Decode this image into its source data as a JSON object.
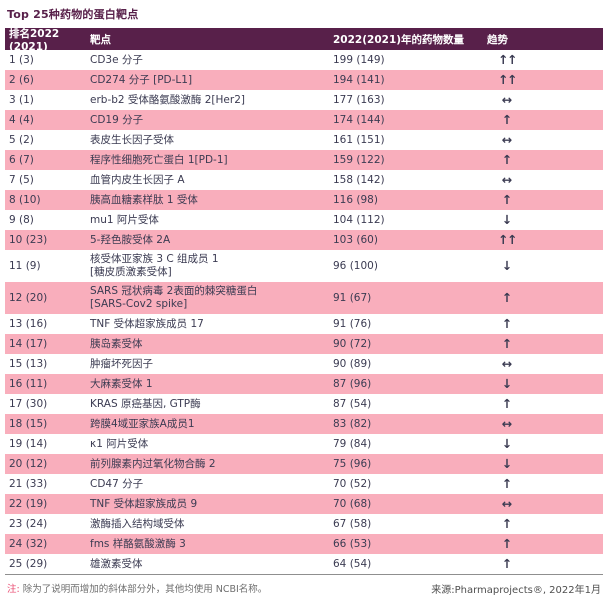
{
  "title": "Top 25种药物的蛋白靶点",
  "columns": {
    "rank": "排名2022 (2021)",
    "target": "靶点",
    "count": "2022(2021)年的药物数量",
    "trend": "趋势"
  },
  "trend_glyphs": {
    "up": "↑",
    "up-up": "↑↑",
    "down": "↓",
    "flat": "↔"
  },
  "rows": [
    {
      "rank": "1 (3)",
      "target": [
        "CD3e 分子"
      ],
      "count": "199 (149)",
      "trend": "up-up"
    },
    {
      "rank": "2 (6)",
      "target": [
        "CD274 分子 [PD-L1]"
      ],
      "count": "194 (141)",
      "trend": "up-up"
    },
    {
      "rank": "3 (1)",
      "target": [
        "erb-b2 受体酪氨酸激酶 2[Her2]"
      ],
      "count": "177 (163)",
      "trend": "flat"
    },
    {
      "rank": "4 (4)",
      "target": [
        "CD19 分子"
      ],
      "count": "174 (144)",
      "trend": "up"
    },
    {
      "rank": "5 (2)",
      "target": [
        "表皮生长因子受体"
      ],
      "count": "161 (151)",
      "trend": "flat"
    },
    {
      "rank": "6 (7)",
      "target": [
        "程序性细胞死亡蛋白 1[PD-1]"
      ],
      "count": "159 (122)",
      "trend": "up"
    },
    {
      "rank": "7 (5)",
      "target": [
        "血管内皮生长因子 A"
      ],
      "count": "158 (142)",
      "trend": "flat"
    },
    {
      "rank": "8 (10)",
      "target": [
        "胰高血糖素样肽 1 受体"
      ],
      "count": "116 (98)",
      "trend": "up"
    },
    {
      "rank": "9 (8)",
      "target": [
        "mu1 阿片受体"
      ],
      "count": "104 (112)",
      "trend": "down"
    },
    {
      "rank": "10 (23)",
      "target": [
        "5-羟色胺受体 2A"
      ],
      "count": "103 (60)",
      "trend": "up-up"
    },
    {
      "rank": "11 (9)",
      "target": [
        "核受体亚家族 3 C 组成员 1",
        "[糖皮质激素受体]"
      ],
      "count": "96 (100)",
      "trend": "down"
    },
    {
      "rank": "12 (20)",
      "target": [
        "SARS 冠状病毒 2表面的棘突糖蛋白",
        "[SARS-Cov2 spike]"
      ],
      "count": "91 (67)",
      "trend": "up"
    },
    {
      "rank": "13 (16)",
      "target": [
        "TNF 受体超家族成员 17"
      ],
      "count": "91 (76)",
      "trend": "up"
    },
    {
      "rank": "14 (17)",
      "target": [
        "胰岛素受体"
      ],
      "count": "90 (72)",
      "trend": "up"
    },
    {
      "rank": "15 (13)",
      "target": [
        "肿瘤坏死因子"
      ],
      "count": "90 (89)",
      "trend": "flat"
    },
    {
      "rank": "16 (11)",
      "target": [
        "大麻素受体 1"
      ],
      "count": "87 (96)",
      "trend": "down"
    },
    {
      "rank": "17 (30)",
      "target": [
        "KRAS 原癌基因, GTP酶"
      ],
      "count": "87 (54)",
      "trend": "up"
    },
    {
      "rank": "18 (15)",
      "target": [
        "跨膜4域亚家族A成员1"
      ],
      "count": "83 (82)",
      "trend": "flat"
    },
    {
      "rank": "19 (14)",
      "target": [
        "κ1 阿片受体"
      ],
      "count": "79 (84)",
      "trend": "down"
    },
    {
      "rank": "20 (12)",
      "target": [
        "前列腺素内过氧化物合酶 2"
      ],
      "count": "75 (96)",
      "trend": "down"
    },
    {
      "rank": "21 (33)",
      "target": [
        "CD47 分子"
      ],
      "count": "70 (52)",
      "trend": "up"
    },
    {
      "rank": "22 (19)",
      "target": [
        "TNF 受体超家族成员 9"
      ],
      "count": "70 (68)",
      "trend": "flat"
    },
    {
      "rank": "23 (24)",
      "target": [
        "激酶插入结构域受体"
      ],
      "count": "67 (58)",
      "trend": "up"
    },
    {
      "rank": "24 (32)",
      "target": [
        "fms 样酪氨酸激酶 3"
      ],
      "count": "66 (53)",
      "trend": "up"
    },
    {
      "rank": "25 (29)",
      "target": [
        "雄激素受体"
      ],
      "count": "64 (54)",
      "trend": "up"
    }
  ],
  "footer": {
    "note_label": "注:",
    "note_text": " 除为了说明而增加的斜体部分外，其他均使用 NCBI名称。",
    "source": "来源:Pharmaprojects®, 2022年1月"
  },
  "colors": {
    "header_bg": "#58204A",
    "row_pink": "#F9AEBC",
    "text": "#3B3B52",
    "note_accent": "#E9486F"
  }
}
